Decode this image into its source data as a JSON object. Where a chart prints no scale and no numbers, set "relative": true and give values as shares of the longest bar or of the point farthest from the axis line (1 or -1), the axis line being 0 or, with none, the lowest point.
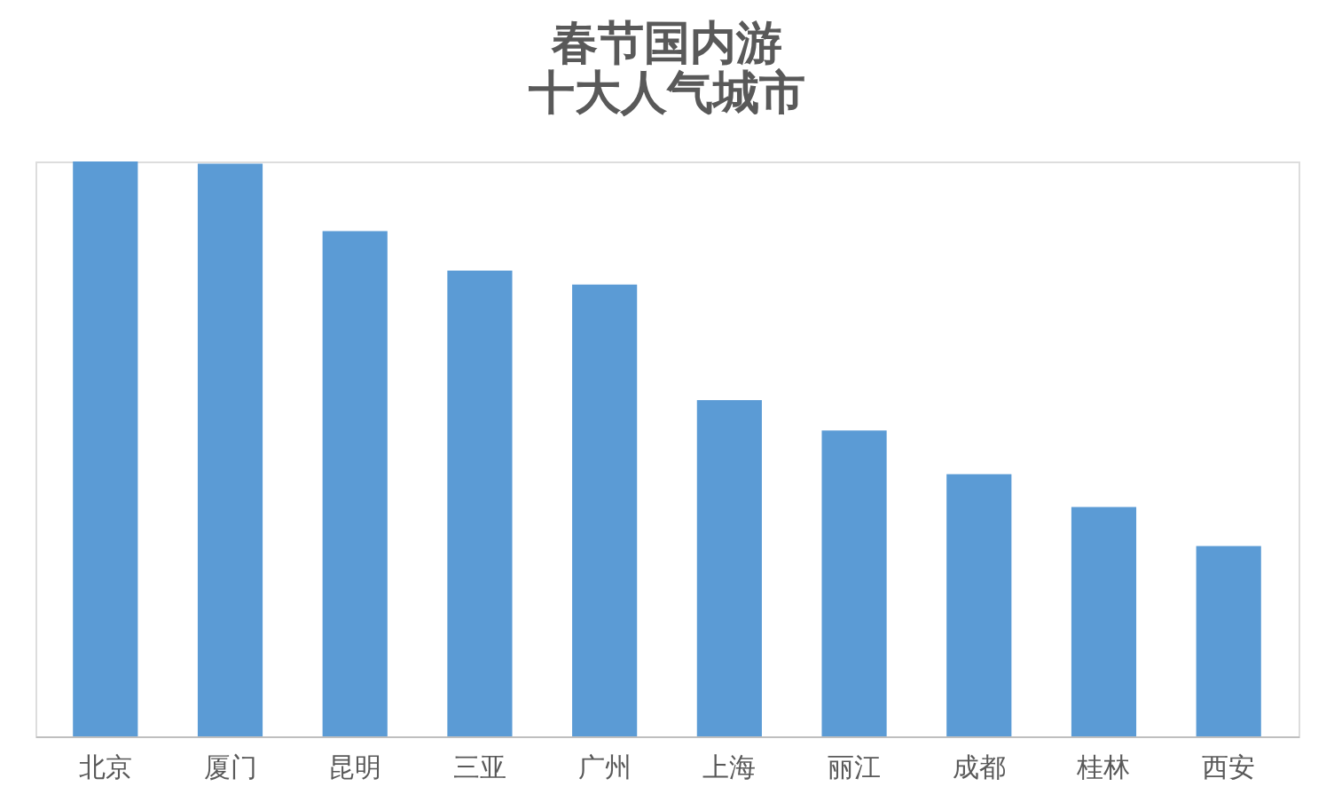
{
  "chart_data": {
    "type": "bar",
    "title": [
      "春节国内游",
      "十大人气城市"
    ],
    "categories": [
      "北京",
      "厦门",
      "昆明",
      "三亚",
      "广州",
      "上海",
      "丽江",
      "成都",
      "桂林",
      "西安"
    ],
    "values": [
      1,
      0.996,
      0.879,
      0.81,
      0.786,
      0.585,
      0.532,
      0.456,
      0.399,
      0.331
    ],
    "color": "#5b9bd5",
    "relative": true,
    "grid": false
  }
}
